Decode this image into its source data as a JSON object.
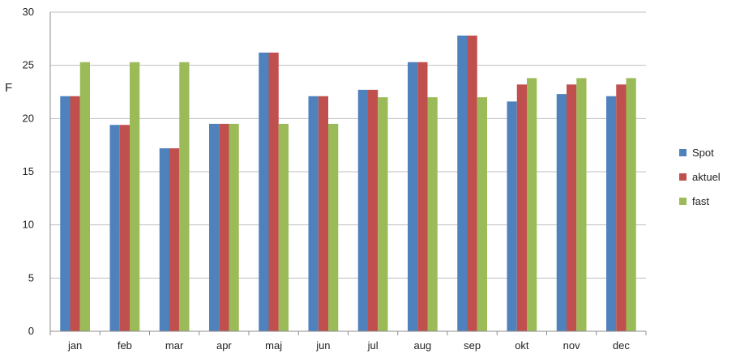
{
  "side_letter": "F",
  "chart_data": {
    "type": "bar",
    "categories": [
      "jan",
      "feb",
      "mar",
      "apr",
      "maj",
      "jun",
      "jul",
      "aug",
      "sep",
      "okt",
      "nov",
      "dec"
    ],
    "series": [
      {
        "name": "Spot",
        "color": "#4F81BD",
        "values": [
          22.1,
          19.4,
          17.2,
          19.5,
          26.2,
          22.1,
          22.7,
          25.3,
          27.8,
          21.6,
          22.3,
          22.1
        ]
      },
      {
        "name": "aktuel",
        "color": "#C0504D",
        "values": [
          22.1,
          19.4,
          17.2,
          19.5,
          26.2,
          22.1,
          22.7,
          25.3,
          27.8,
          23.2,
          23.2,
          23.2
        ]
      },
      {
        "name": "fast",
        "color": "#9BBB59",
        "values": [
          25.3,
          25.3,
          25.3,
          19.5,
          19.5,
          19.5,
          22.0,
          22.0,
          22.0,
          23.8,
          23.8,
          23.8
        ]
      }
    ],
    "yticks": [
      "0",
      "5",
      "10",
      "15",
      "20",
      "25",
      "30"
    ],
    "ylim": [
      0,
      30
    ],
    "grid": true,
    "legend_position": "right"
  }
}
